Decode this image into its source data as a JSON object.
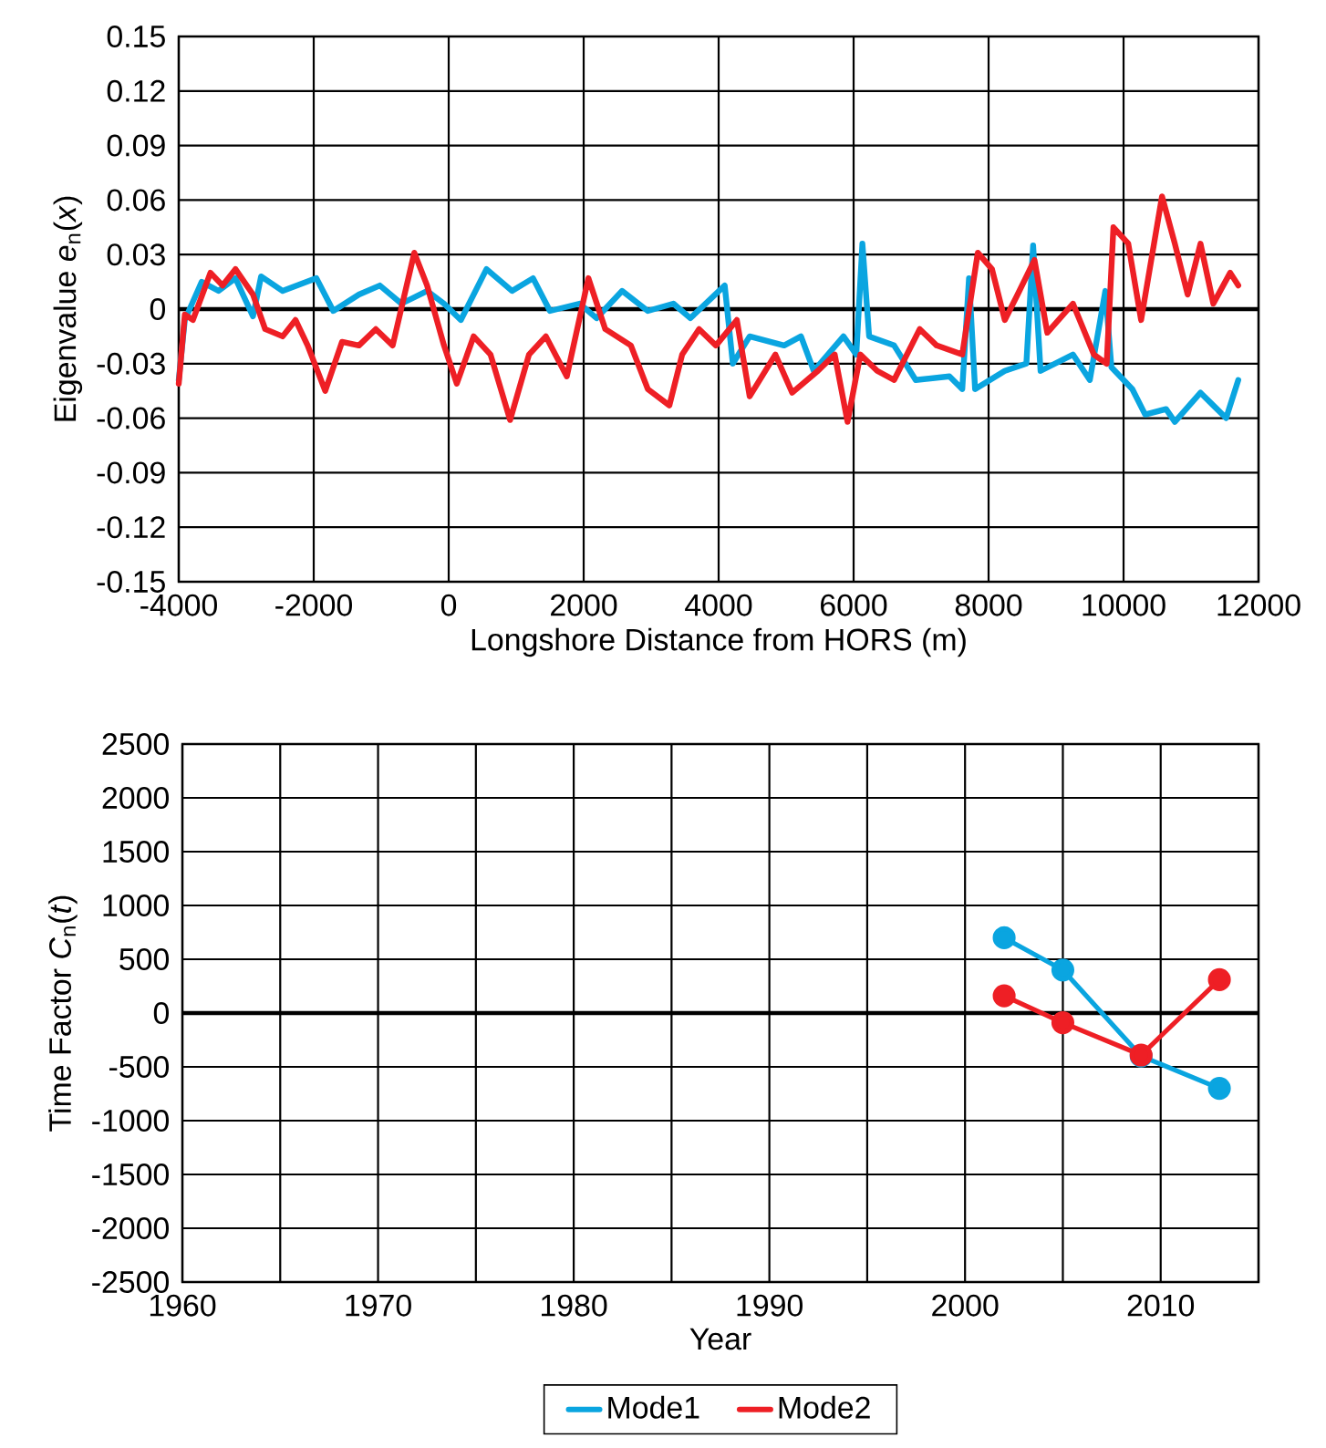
{
  "chart_data": [
    {
      "type": "line",
      "xlabel": "Longshore Distance from HORS (m)",
      "ylabel": "Eigenvalue *e*$_{n}$(*x*)",
      "xlim": [
        -4000,
        12000
      ],
      "ylim": [
        -0.15,
        0.15
      ],
      "xticks": [
        -4000,
        -2000,
        0,
        2000,
        4000,
        6000,
        8000,
        10000,
        12000
      ],
      "yticks": [
        -0.15,
        -0.12,
        -0.09,
        -0.06,
        -0.03,
        0,
        0.03,
        0.06,
        0.09,
        0.12,
        0.15
      ],
      "grid": true,
      "marker": "none",
      "line_style": "solid",
      "ref_lines": [
        {
          "axis": "y",
          "value": 0,
          "color": "#000000"
        }
      ],
      "series": [
        {
          "color": "#0aa5e0",
          "x": [
            -4000,
            -3910,
            -3660,
            -3410,
            -3160,
            -2900,
            -2780,
            -2460,
            -1960,
            -1710,
            -1330,
            -1020,
            -700,
            -320,
            -70,
            180,
            560,
            940,
            1250,
            1500,
            1940,
            2190,
            2570,
            2950,
            3330,
            3580,
            4090,
            4210,
            4460,
            4970,
            5220,
            5410,
            5850,
            6040,
            6130,
            6230,
            6600,
            6920,
            7420,
            7610,
            7710,
            7800,
            8240,
            8560,
            8660,
            8770,
            9250,
            9500,
            9730,
            9820,
            10130,
            10320,
            10630,
            10760,
            11140,
            11330,
            11520,
            11700
          ],
          "values": [
            -0.039,
            -0.006,
            0.015,
            0.01,
            0.017,
            -0.004,
            0.018,
            0.01,
            0.017,
            -0.001,
            0.008,
            0.013,
            0.003,
            0.01,
            0.003,
            -0.006,
            0.022,
            0.01,
            0.017,
            -0.001,
            0.003,
            -0.005,
            0.01,
            -0.001,
            0.003,
            -0.005,
            0.013,
            -0.03,
            -0.015,
            -0.02,
            -0.015,
            -0.034,
            -0.015,
            -0.025,
            0.036,
            -0.015,
            -0.02,
            -0.039,
            -0.037,
            -0.044,
            0.017,
            -0.044,
            -0.034,
            -0.03,
            0.035,
            -0.034,
            -0.025,
            -0.039,
            0.01,
            -0.032,
            -0.044,
            -0.058,
            -0.055,
            -0.062,
            -0.046,
            -0.053,
            -0.06,
            -0.039
          ]
        },
        {
          "color": "#ee1f25",
          "x": [
            -4000,
            -3910,
            -3790,
            -3530,
            -3350,
            -3160,
            -2900,
            -2720,
            -2460,
            -2270,
            -2090,
            -1830,
            -1580,
            -1330,
            -1080,
            -830,
            -510,
            -320,
            -70,
            120,
            370,
            620,
            910,
            1190,
            1440,
            1750,
            2070,
            2320,
            2700,
            2950,
            3270,
            3460,
            3710,
            3960,
            4270,
            4460,
            4840,
            5090,
            5470,
            5720,
            5910,
            6100,
            6350,
            6600,
            6980,
            7230,
            7610,
            7840,
            8050,
            8240,
            8430,
            8680,
            8870,
            9250,
            9560,
            9750,
            9850,
            10070,
            10260,
            10570,
            10760,
            10950,
            11140,
            11330,
            11580,
            11700
          ],
          "values": [
            -0.041,
            -0.003,
            -0.006,
            0.02,
            0.013,
            0.022,
            0.008,
            -0.011,
            -0.015,
            -0.006,
            -0.02,
            -0.045,
            -0.018,
            -0.02,
            -0.011,
            -0.02,
            0.031,
            0.013,
            -0.02,
            -0.041,
            -0.015,
            -0.025,
            -0.061,
            -0.025,
            -0.015,
            -0.037,
            0.017,
            -0.011,
            -0.02,
            -0.044,
            -0.053,
            -0.025,
            -0.011,
            -0.02,
            -0.006,
            -0.048,
            -0.025,
            -0.046,
            -0.034,
            -0.025,
            -0.062,
            -0.025,
            -0.034,
            -0.039,
            -0.011,
            -0.02,
            -0.025,
            0.031,
            0.022,
            -0.006,
            0.008,
            0.027,
            -0.013,
            0.003,
            -0.025,
            -0.03,
            0.045,
            0.036,
            -0.006,
            0.062,
            0.036,
            0.008,
            0.036,
            0.003,
            0.02,
            0.013
          ]
        }
      ]
    },
    {
      "type": "line",
      "xlabel": "Year",
      "ylabel": "Time Factor *C*$_{n}$(*t*)",
      "xlim": [
        1960,
        2015
      ],
      "ylim": [
        -2500,
        2500
      ],
      "xticks": [
        1960,
        {
          "value": 1965,
          "label": null
        },
        1970,
        {
          "value": 1975,
          "label": null
        },
        1980,
        {
          "value": 1985,
          "label": null
        },
        1990,
        {
          "value": 1995,
          "label": null
        },
        2000,
        {
          "value": 2005,
          "label": null
        },
        2010,
        {
          "value": 2015,
          "label": null
        }
      ],
      "yticks": [
        -2500,
        -2000,
        -1500,
        -1000,
        -500,
        0,
        500,
        1000,
        1500,
        2000,
        2500
      ],
      "grid": true,
      "marker": "circle",
      "line_style": "solid",
      "legend": "bottom",
      "ref_lines": [
        {
          "axis": "y",
          "value": 0,
          "color": "#000000"
        }
      ],
      "x": [
        2002,
        2005,
        2009,
        2013
      ],
      "series": [
        {
          "name": "Mode1",
          "color": "#0aa5e0",
          "values": [
            700,
            400,
            -400,
            -700
          ]
        },
        {
          "name": "Mode2",
          "color": "#ee1f25",
          "values": [
            160,
            -90,
            -390,
            310
          ]
        }
      ]
    }
  ]
}
